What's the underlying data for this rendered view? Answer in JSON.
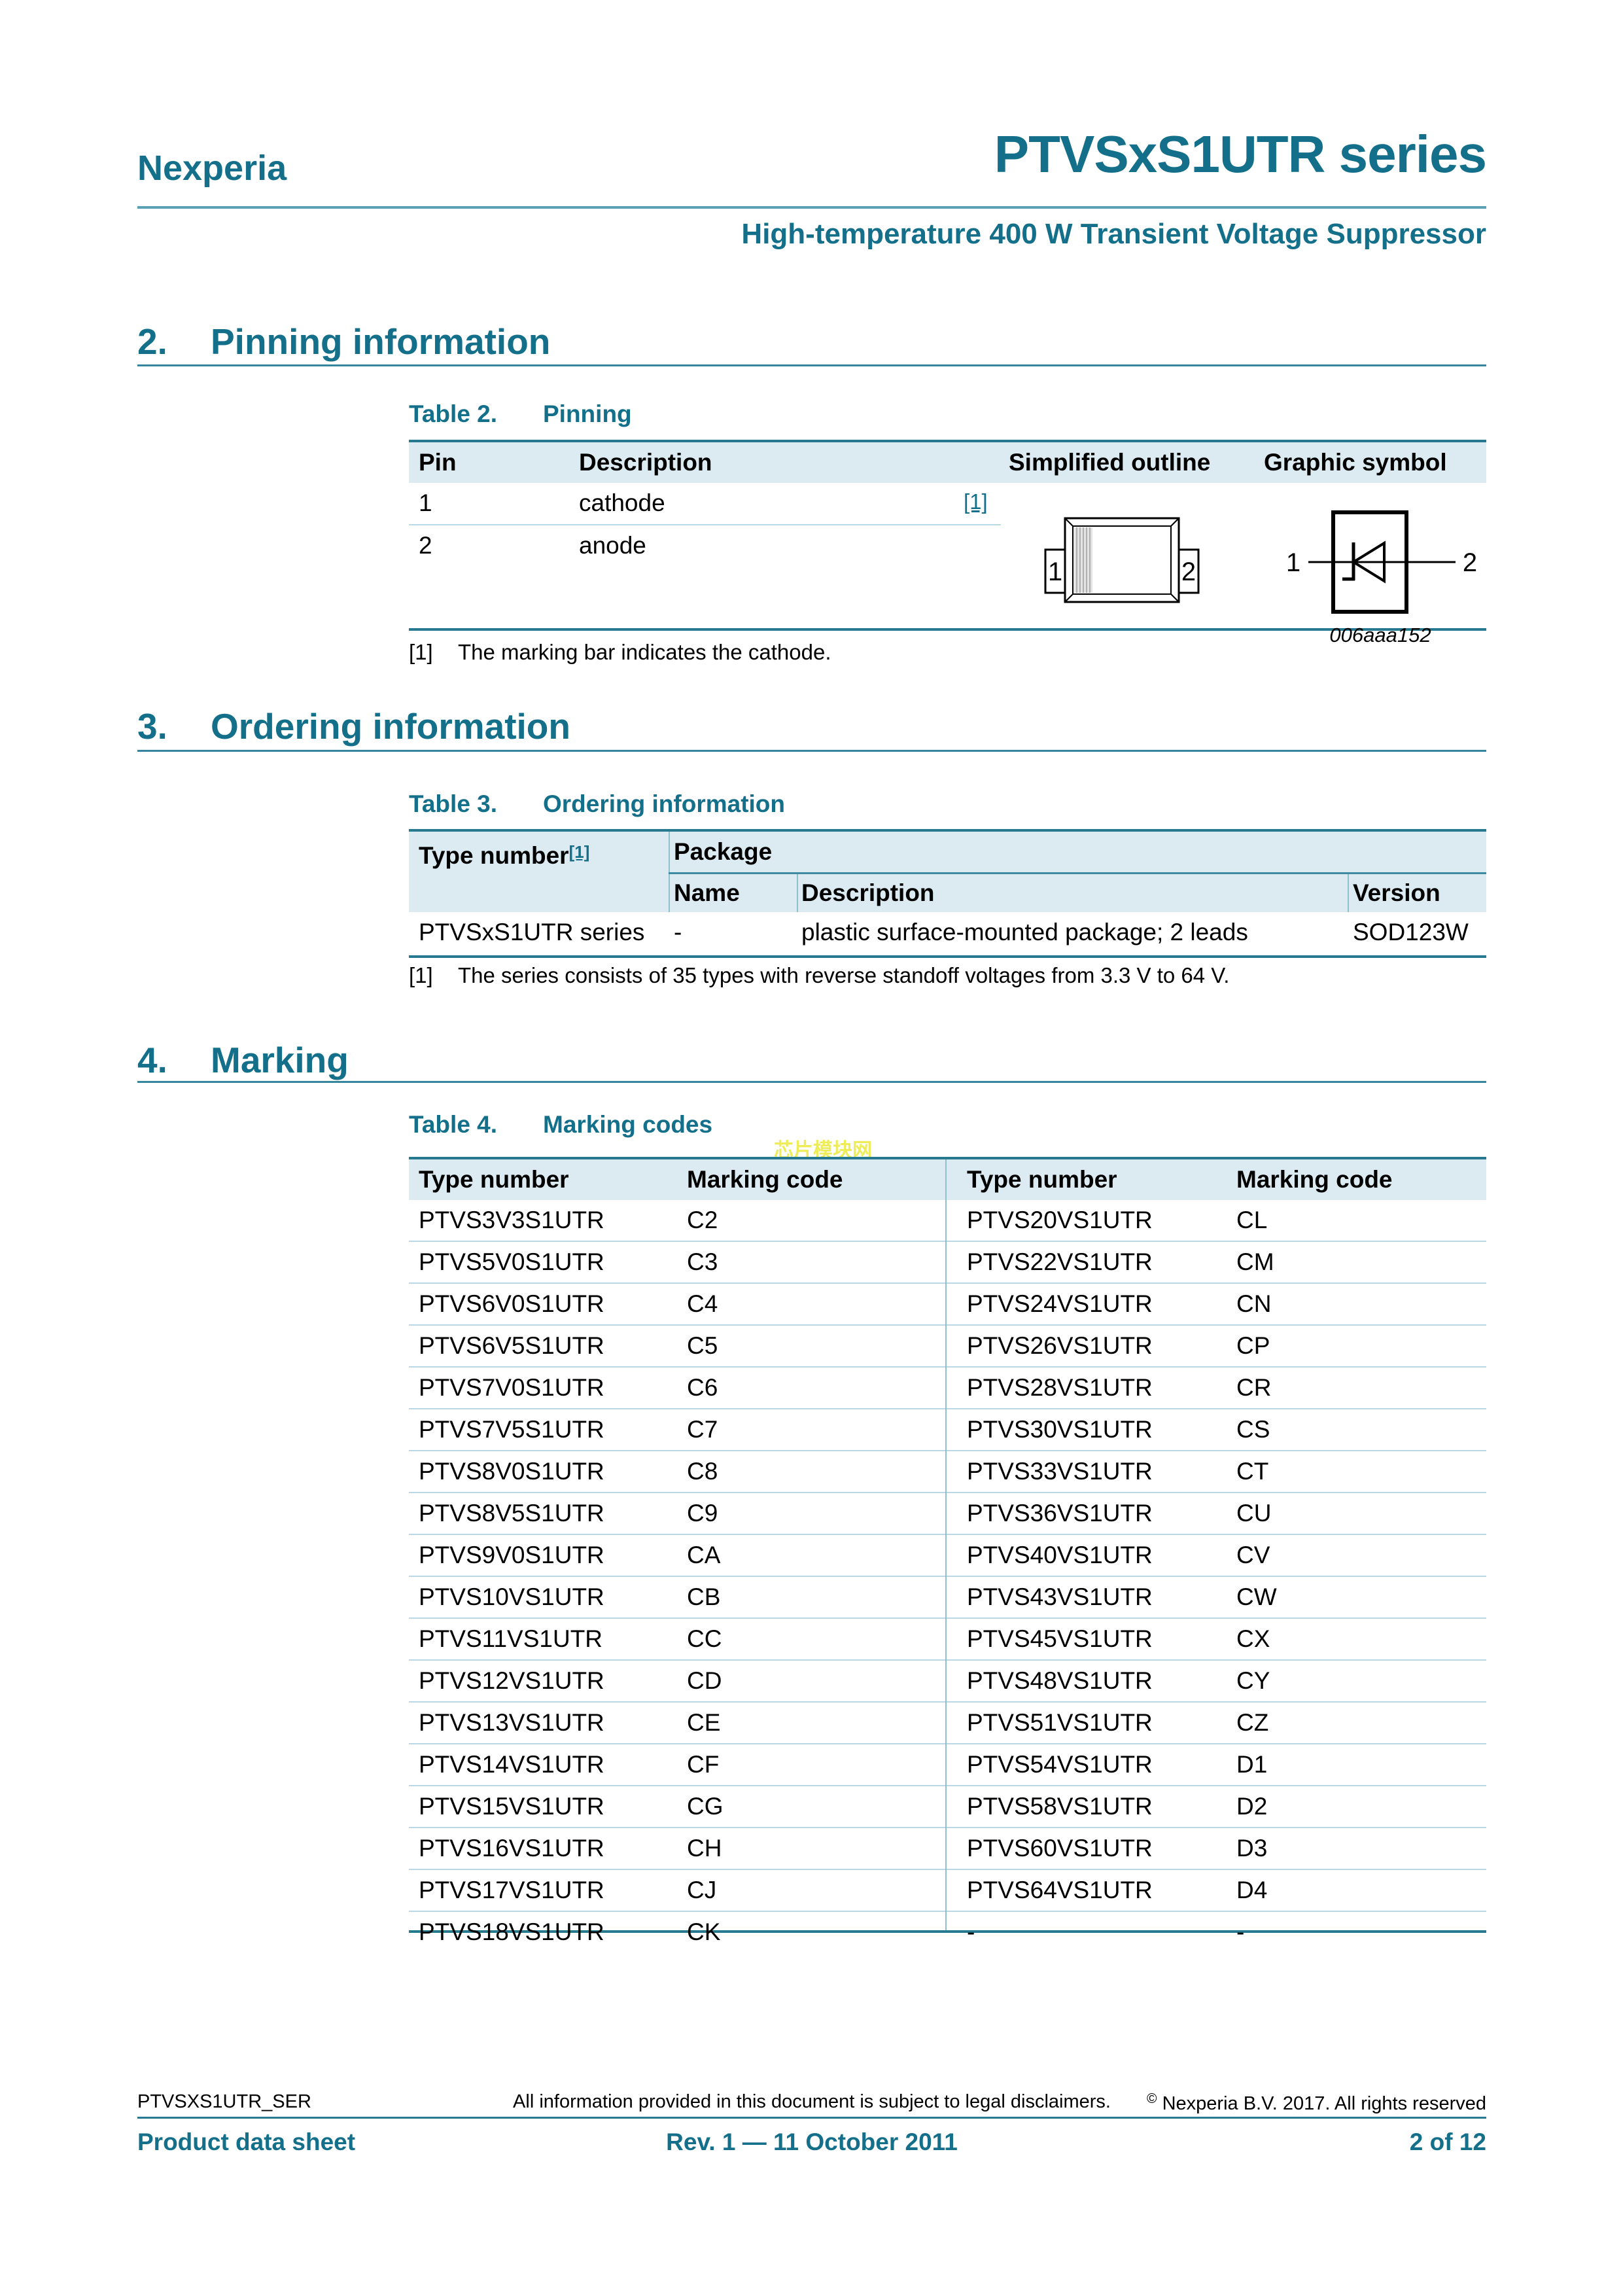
{
  "header": {
    "brand": "Nexperia",
    "title": "PTVSxS1UTR series",
    "subtitle": "High-temperature 400 W Transient Voltage Suppressor"
  },
  "sections": {
    "pinning": {
      "number": "2.",
      "title": "Pinning information"
    },
    "ordering": {
      "number": "3.",
      "title": "Ordering information"
    },
    "marking": {
      "number": "4.",
      "title": "Marking"
    }
  },
  "table2": {
    "caption_label": "Table 2.",
    "caption_title": "Pinning",
    "headers": [
      "Pin",
      "Description",
      "Simplified outline",
      "Graphic symbol"
    ],
    "rows": [
      {
        "pin": "1",
        "description": "cathode",
        "note_ref": "[1]"
      },
      {
        "pin": "2",
        "description": "anode"
      }
    ],
    "outline": {
      "pin1_label": "1",
      "pin2_label": "2"
    },
    "symbol": {
      "pin1_label": "1",
      "pin2_label": "2",
      "figure_code": "006aaa152"
    },
    "footnote_ref": "[1]",
    "footnote": "The marking bar indicates the cathode."
  },
  "table3": {
    "caption_label": "Table 3.",
    "caption_title": "Ordering information",
    "col_type_number": "Type number",
    "col_type_number_ref": "[1]",
    "col_package": "Package",
    "col_name": "Name",
    "col_description": "Description",
    "col_version": "Version",
    "row": {
      "type_number": "PTVSxS1UTR series",
      "name": "-",
      "description": "plastic surface-mounted package; 2 leads",
      "version": "SOD123W"
    },
    "footnote_ref": "[1]",
    "footnote": "The series consists of 35 types with reverse standoff voltages from 3.3 V to 64 V."
  },
  "table4": {
    "caption_label": "Table 4.",
    "caption_title": "Marking codes",
    "headers": [
      "Type number",
      "Marking code",
      "Type number",
      "Marking code"
    ],
    "rows": [
      [
        "PTVS3V3S1UTR",
        "C2",
        "PTVS20VS1UTR",
        "CL"
      ],
      [
        "PTVS5V0S1UTR",
        "C3",
        "PTVS22VS1UTR",
        "CM"
      ],
      [
        "PTVS6V0S1UTR",
        "C4",
        "PTVS24VS1UTR",
        "CN"
      ],
      [
        "PTVS6V5S1UTR",
        "C5",
        "PTVS26VS1UTR",
        "CP"
      ],
      [
        "PTVS7V0S1UTR",
        "C6",
        "PTVS28VS1UTR",
        "CR"
      ],
      [
        "PTVS7V5S1UTR",
        "C7",
        "PTVS30VS1UTR",
        "CS"
      ],
      [
        "PTVS8V0S1UTR",
        "C8",
        "PTVS33VS1UTR",
        "CT"
      ],
      [
        "PTVS8V5S1UTR",
        "C9",
        "PTVS36VS1UTR",
        "CU"
      ],
      [
        "PTVS9V0S1UTR",
        "CA",
        "PTVS40VS1UTR",
        "CV"
      ],
      [
        "PTVS10VS1UTR",
        "CB",
        "PTVS43VS1UTR",
        "CW"
      ],
      [
        "PTVS11VS1UTR",
        "CC",
        "PTVS45VS1UTR",
        "CX"
      ],
      [
        "PTVS12VS1UTR",
        "CD",
        "PTVS48VS1UTR",
        "CY"
      ],
      [
        "PTVS13VS1UTR",
        "CE",
        "PTVS51VS1UTR",
        "CZ"
      ],
      [
        "PTVS14VS1UTR",
        "CF",
        "PTVS54VS1UTR",
        "D1"
      ],
      [
        "PTVS15VS1UTR",
        "CG",
        "PTVS58VS1UTR",
        "D2"
      ],
      [
        "PTVS16VS1UTR",
        "CH",
        "PTVS60VS1UTR",
        "D3"
      ],
      [
        "PTVS17VS1UTR",
        "CJ",
        "PTVS64VS1UTR",
        "D4"
      ],
      [
        "PTVS18VS1UTR",
        "CK",
        "-",
        "-"
      ]
    ]
  },
  "watermark": "芯片模块网",
  "footer": {
    "doc_id": "PTVSXS1UTR_SER",
    "disclaimer": "All information provided in this document is subject to legal disclaimers.",
    "copyright_symbol": "©",
    "copyright": "Nexperia B.V. 2017. All rights reserved",
    "doc_type": "Product data sheet",
    "revision": "Rev. 1 — 11 October 2011",
    "page": "2 of 12"
  },
  "colors": {
    "teal": "#14708a",
    "table_border": "#26798f",
    "header_band": "#dcebf2",
    "row_separator": "#b9dae4",
    "watermark_yellow": "#efeb52"
  }
}
